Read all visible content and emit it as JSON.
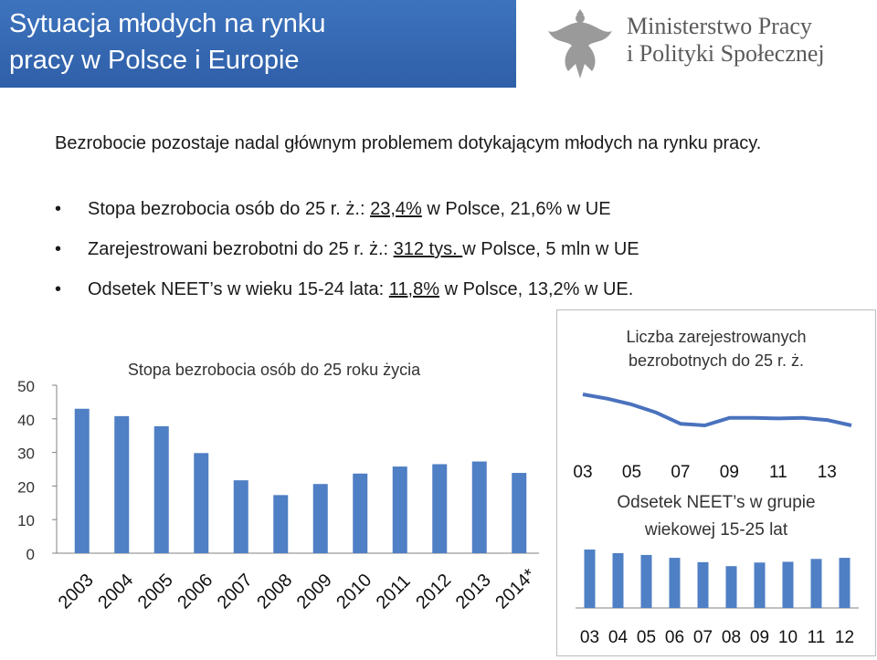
{
  "slide": {
    "title_line1": "Sytuacja młodych na rynku",
    "title_line2": "pracy w Polsce i Europie",
    "ministry_line1": "Ministerstwo Pracy",
    "ministry_line2": "i Polityki Społecznej",
    "intro": "Bezrobocie pozostaje nadal głównym problemem dotykającym młodych na rynku pracy.",
    "bullets": [
      {
        "before": "Stopa bezrobocia osób do 25 r. ż.: ",
        "value": "23,4%",
        "after": " w Polsce, 21,6% w UE"
      },
      {
        "before": "Zarejestrowani bezrobotni do 25 r. ż.: ",
        "value": "312 tys. ",
        "after": "w Polsce, 5 mln w UE"
      },
      {
        "before": "Odsetek NEET’s w wieku 15-24 lata: ",
        "value": "11,8%",
        "after": " w Polsce, 13,2% w UE."
      }
    ],
    "colors": {
      "title_bg": "#3366b3",
      "bar": "#4f7fc4",
      "line": "#4a72bd"
    }
  },
  "chart_data": [
    {
      "type": "bar",
      "title": "Stopa bezrobocia osób do 25 roku życia",
      "categories": [
        "2003",
        "2004",
        "2005",
        "2006",
        "2007",
        "2008",
        "2009",
        "2010",
        "2011",
        "2012",
        "2013",
        "2014*"
      ],
      "values": [
        43,
        40.8,
        37.8,
        29.8,
        21.7,
        17.3,
        20.6,
        23.7,
        25.8,
        26.5,
        27.3,
        23.9
      ],
      "yticks": [
        "0",
        "10",
        "20",
        "30",
        "40",
        "50"
      ],
      "ylim": [
        0,
        50
      ]
    },
    {
      "type": "line",
      "title": "Liczba zarejestrowanych bezrobotnych do 25 r. ż.",
      "x": [
        "03",
        "04",
        "05",
        "06",
        "07",
        "08",
        "09",
        "10",
        "11",
        "12",
        "13",
        "14"
      ],
      "xticks": [
        "03",
        "05",
        "07",
        "09",
        "11",
        "13"
      ],
      "values": [
        100,
        92,
        81,
        66,
        45,
        42,
        56,
        56,
        55,
        56,
        52,
        42
      ]
    },
    {
      "type": "bar",
      "title": "Odsetek NEET’s w grupie wiekowej 15-25 lat",
      "categories": [
        "03",
        "04",
        "05",
        "06",
        "07",
        "08",
        "09",
        "10",
        "11",
        "12"
      ],
      "values": [
        16.2,
        15.2,
        14.7,
        13.9,
        12.7,
        11.6,
        12.6,
        12.8,
        13.6,
        13.9
      ]
    }
  ]
}
